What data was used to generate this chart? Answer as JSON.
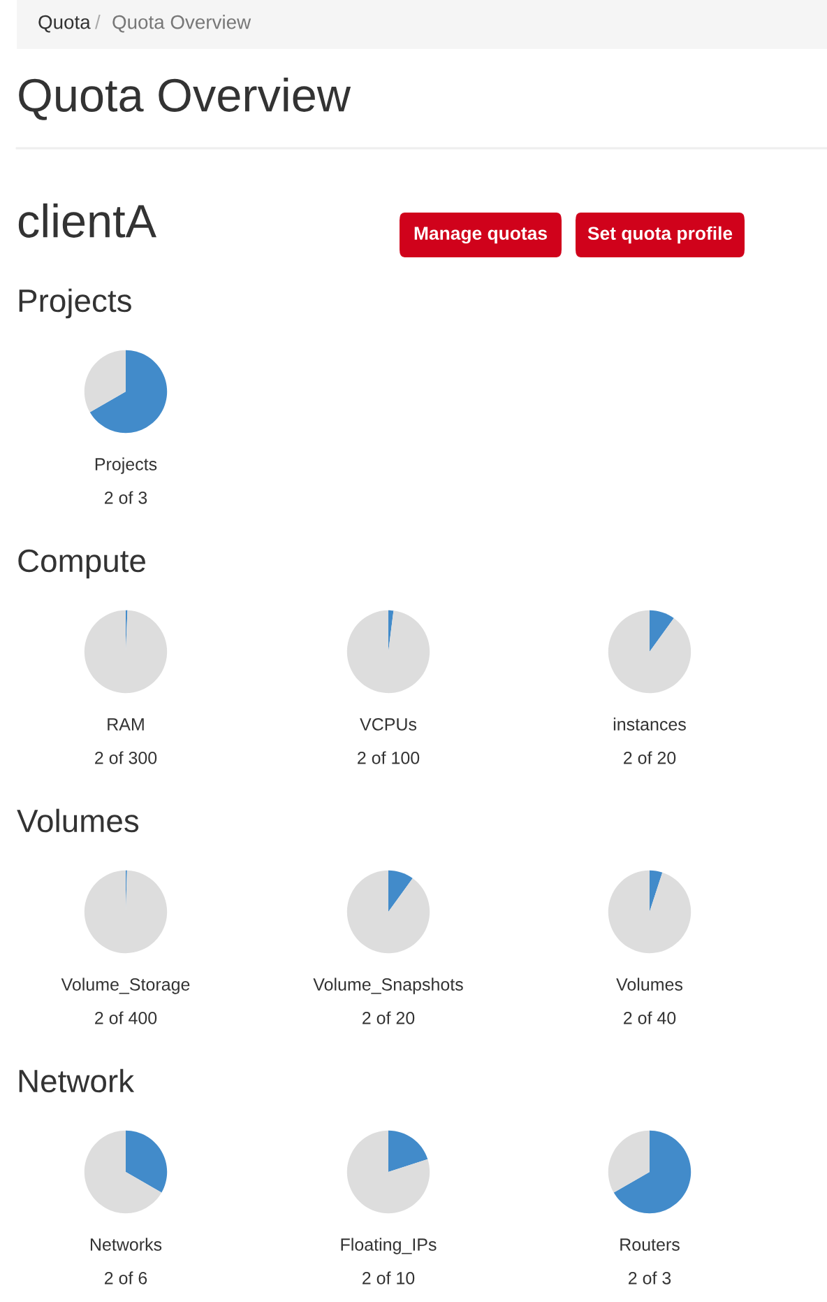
{
  "chart_data": [
    {
      "type": "other",
      "title": "Quota Overview",
      "annotations": [
        "Quota",
        "/",
        "Quota Overview",
        "clientA",
        "Manage quotas",
        "Set quota profile"
      ]
    },
    {
      "type": "other",
      "title": "Projects"
    },
    {
      "type": "pie",
      "title": "Projects",
      "annotations": [
        "2 of 3"
      ],
      "categories": [
        null,
        null
      ],
      "values": [
        66.67,
        33.33
      ],
      "colors": [
        "#428bca",
        "#dddddd"
      ]
    },
    {
      "type": "other",
      "title": "Compute"
    },
    {
      "type": "pie",
      "title": "RAM",
      "annotations": [
        "2 of 300"
      ],
      "categories": [
        null,
        null
      ],
      "values": [
        0.67,
        99.33
      ],
      "colors": [
        "#428bca",
        "#dddddd"
      ]
    },
    {
      "type": "pie",
      "title": "VCPUs",
      "annotations": [
        "2 of 100"
      ],
      "categories": [
        null,
        null
      ],
      "values": [
        2,
        98.0
      ],
      "colors": [
        "#428bca",
        "#dddddd"
      ]
    },
    {
      "type": "pie",
      "title": "instances",
      "annotations": [
        "2 of 20"
      ],
      "categories": [
        null,
        null
      ],
      "values": [
        10,
        90
      ],
      "colors": [
        "#428bca",
        "#dddddd"
      ]
    },
    {
      "type": "other",
      "title": "Volumes"
    },
    {
      "type": "pie",
      "title": "Volume_Storage",
      "annotations": [
        "2 of 400"
      ],
      "categories": [
        null,
        null
      ],
      "values": [
        0.5,
        99.5
      ],
      "colors": [
        "#428bca",
        "#dddddd"
      ]
    },
    {
      "type": "pie",
      "title": "Volume_Snapshots",
      "annotations": [
        "2 of 20"
      ],
      "categories": [
        null,
        null
      ],
      "values": [
        10,
        90
      ],
      "colors": [
        "#428bca",
        "#dddddd"
      ]
    },
    {
      "type": "pie",
      "title": "Volumes",
      "annotations": [
        "2 of 40"
      ],
      "categories": [
        null,
        null
      ],
      "values": [
        5,
        95
      ],
      "colors": [
        "#428bca",
        "#dddddd"
      ]
    },
    {
      "type": "other",
      "title": "Network"
    },
    {
      "type": "pie",
      "title": "Networks",
      "annotations": [
        "2 of 6"
      ],
      "categories": [
        null,
        null
      ],
      "values": [
        33.33,
        66.67
      ],
      "colors": [
        "#428bca",
        "#dddddd"
      ]
    },
    {
      "type": "pie",
      "title": "Floating_IPs",
      "annotations": [
        "2 of 10"
      ],
      "categories": [
        null,
        null
      ],
      "values": [
        20,
        80
      ],
      "colors": [
        "#428bca",
        "#dddddd"
      ]
    },
    {
      "type": "pie",
      "title": "Routers",
      "annotations": [
        "2 of 3"
      ],
      "categories": [
        null,
        null
      ],
      "values": [
        66.67,
        33.33
      ],
      "colors": [
        "#428bca",
        "#dddddd"
      ]
    }
  ]
}
